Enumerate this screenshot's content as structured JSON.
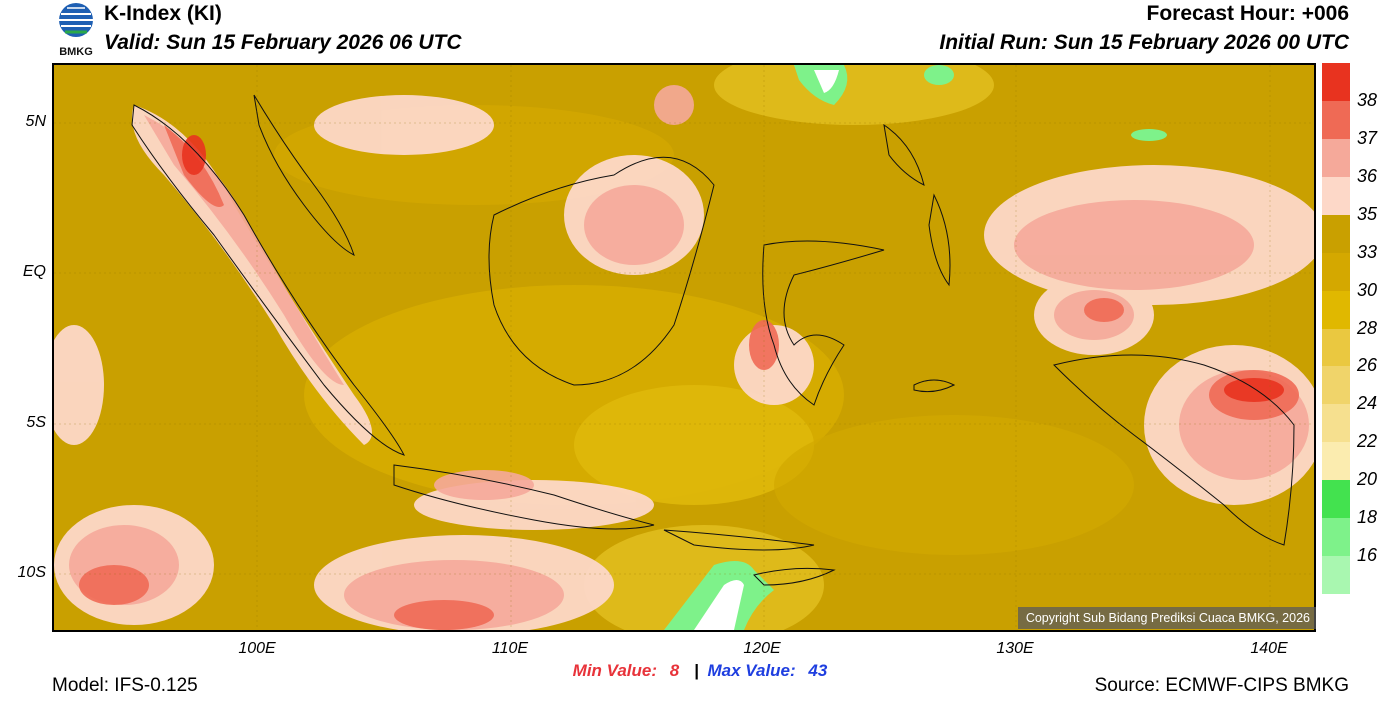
{
  "header": {
    "title": "K-Index (KI)",
    "valid": "Valid: Sun 15 February 2026 06 UTC",
    "forecast_hour": "Forecast Hour: +006",
    "initial_run": "Initial Run: Sun 15 February 2026 00 UTC",
    "logo_text": "BMKG"
  },
  "map": {
    "lat_labels": [
      "5N",
      "EQ",
      "5S",
      "10S"
    ],
    "lon_labels": [
      "100E",
      "110E",
      "120E",
      "130E",
      "140E"
    ],
    "copyright": "Copyright Sub Bidang Prediksi Cuaca BMKG, 2026"
  },
  "colorbar": {
    "labels": [
      "38",
      "37",
      "36",
      "35",
      "33",
      "30",
      "28",
      "26",
      "24",
      "22",
      "20",
      "18",
      "16"
    ],
    "colors": [
      "#e8331f",
      "#ef6a55",
      "#f5a99a",
      "#fdd8c8",
      "#c9a000",
      "#d4a800",
      "#e0b800",
      "#eac840",
      "#f0d46a",
      "#f6e08f",
      "#fbecaf",
      "#43e24f",
      "#7ef28a",
      "#a9f7b0",
      "#ffffff"
    ]
  },
  "stats": {
    "min_label": "Min Value:",
    "min_value": "8",
    "separator": "|",
    "max_label": "Max Value:",
    "max_value": "43"
  },
  "footer": {
    "model": "Model: IFS-0.125",
    "source": "Source: ECMWF-CIPS BMKG"
  }
}
